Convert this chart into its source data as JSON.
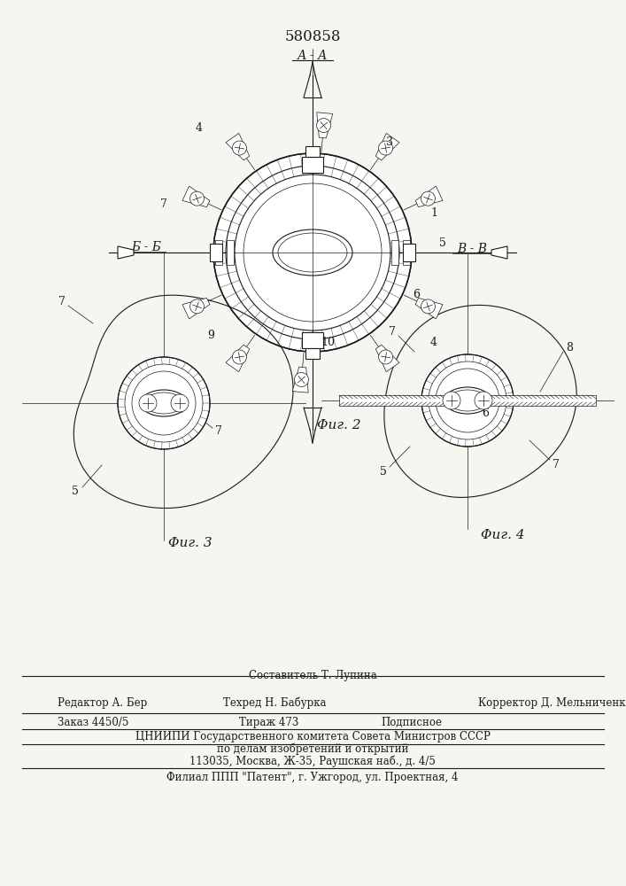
{
  "title": "580858",
  "aa_label": "А - А",
  "fig2_caption": "Φиг. 2",
  "fig3_label": "Б - Б",
  "fig3_caption": "Φиг. 3",
  "fig4_label": "В - В",
  "fig4_caption": "Φиг. 4",
  "bg_color": "#f7f5f0",
  "line_color": "#1a1a1a",
  "footer_line1": "Составитель Т. Лупина",
  "footer_line2_left": "Редактор А. Бер",
  "footer_line2_mid": "Техред Н. Бабурка",
  "footer_line2_right": "Корректор Д. Мельниченко",
  "footer_line3_left": "Заказ 4450/5",
  "footer_line3_mid": "Тираж 473",
  "footer_line3_right": "Подписное",
  "footer_line4": "ЦНИИПИ Государственного комитета Совета Министров СССР",
  "footer_line5": "по делам изобретений и открытий",
  "footer_line6": "113035, Москва, Ж-35, Раушская наб., д. 4/5",
  "footer_line7": "Филиал ППП \"Патент\", г. Ужгород, ул. Проектная, 4"
}
